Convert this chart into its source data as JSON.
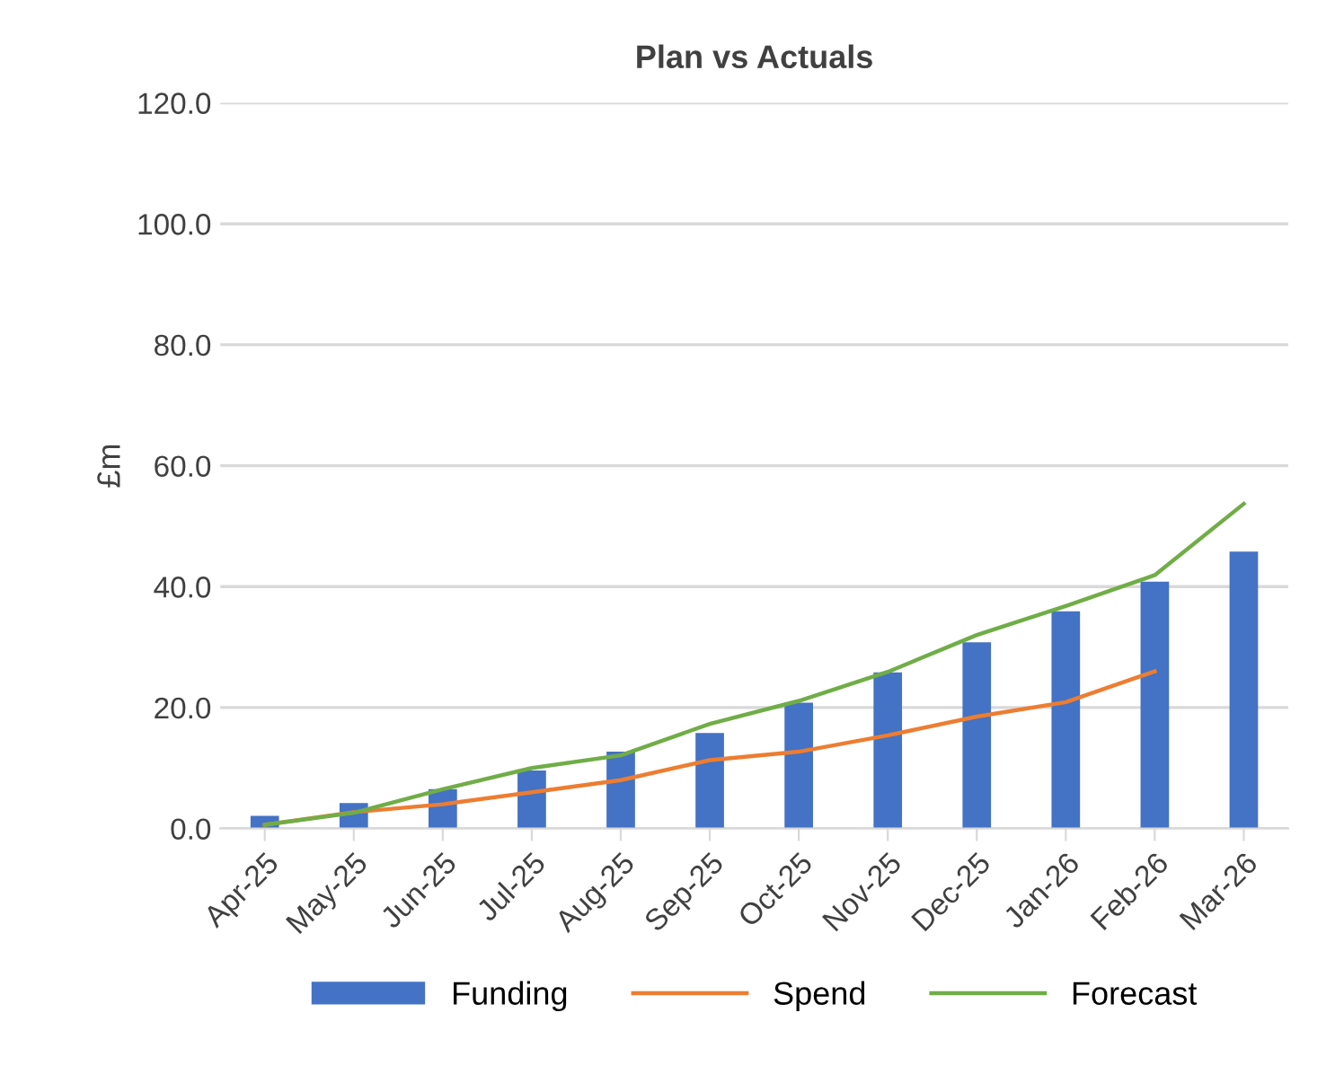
{
  "chart_data": {
    "type": "bar",
    "title": "Plan vs Actuals",
    "ylabel": "£m",
    "categories": [
      "Apr-25",
      "May-25",
      "Jun-25",
      "Jul-25",
      "Aug-25",
      "Sep-25",
      "Oct-25",
      "Nov-25",
      "Dec-25",
      "Jan-26",
      "Feb-26",
      "Mar-26"
    ],
    "series": [
      {
        "name": "Funding",
        "color": "#4472c4",
        "values": [
          2.1,
          4.2,
          6.5,
          9.6,
          12.7,
          15.8,
          20.8,
          25.8,
          30.8,
          35.9,
          40.8,
          45.8
        ]
      },
      {
        "name": "Spend",
        "type": "line",
        "color": "#ed7d31",
        "values": [
          0.6,
          2.7,
          4.0,
          6.0,
          8.0,
          11.3,
          12.7,
          15.4,
          18.5,
          20.9,
          26.0,
          null
        ]
      },
      {
        "name": "Forecast",
        "type": "line",
        "color": "#70ad47",
        "values": [
          0.6,
          2.6,
          6.5,
          10.0,
          12.1,
          17.3,
          21.1,
          25.9,
          32.0,
          36.8,
          41.9,
          53.7
        ]
      }
    ],
    "ylim": [
      0,
      120
    ],
    "yticks": [
      {
        "value": 0,
        "label": "0.0"
      },
      {
        "value": 20,
        "label": "20.0"
      },
      {
        "value": 40,
        "label": "40.0"
      },
      {
        "value": 60,
        "label": "60.0"
      },
      {
        "value": 80,
        "label": "80.0"
      },
      {
        "value": 100,
        "label": "100.0"
      },
      {
        "value": 120,
        "label": "120.0"
      }
    ],
    "grid": "y",
    "legend": "bottom",
    "marker": "none"
  }
}
